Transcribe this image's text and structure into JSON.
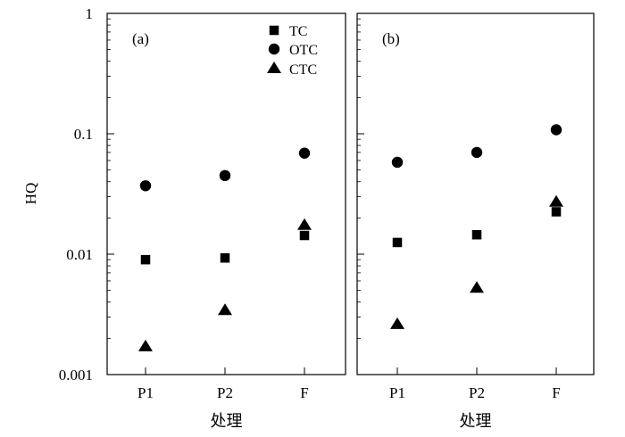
{
  "chart_data": {
    "type": "scatter",
    "ylabel": "HQ",
    "xlabel": "处理",
    "yscale": "log",
    "ylim": [
      0.001,
      1
    ],
    "y_ticks": [
      {
        "value": 0.001,
        "label": "0.001"
      },
      {
        "value": 0.01,
        "label": "0.01"
      },
      {
        "value": 0.1,
        "label": "0.1"
      },
      {
        "value": 1,
        "label": "1"
      }
    ],
    "categories": [
      "P1",
      "P2",
      "F"
    ],
    "legend": {
      "placement": "top-right of panel (a)",
      "entries": [
        {
          "name": "TC",
          "marker": "square"
        },
        {
          "name": "OTC",
          "marker": "circle"
        },
        {
          "name": "CTC",
          "marker": "triangle"
        }
      ]
    },
    "panels": [
      {
        "label": "(a)",
        "series": [
          {
            "name": "TC",
            "marker": "square",
            "values": [
              0.009,
              0.0093,
              0.0143
            ]
          },
          {
            "name": "OTC",
            "marker": "circle",
            "values": [
              0.037,
              0.045,
              0.069
            ]
          },
          {
            "name": "CTC",
            "marker": "triangle",
            "values": [
              0.0017,
              0.0034,
              0.0173
            ]
          }
        ]
      },
      {
        "label": "(b)",
        "series": [
          {
            "name": "TC",
            "marker": "square",
            "values": [
              0.0125,
              0.0145,
              0.0225
            ]
          },
          {
            "name": "OTC",
            "marker": "circle",
            "values": [
              0.058,
              0.07,
              0.108
            ]
          },
          {
            "name": "CTC",
            "marker": "triangle",
            "values": [
              0.0026,
              0.0052,
              0.027
            ]
          }
        ]
      }
    ]
  }
}
